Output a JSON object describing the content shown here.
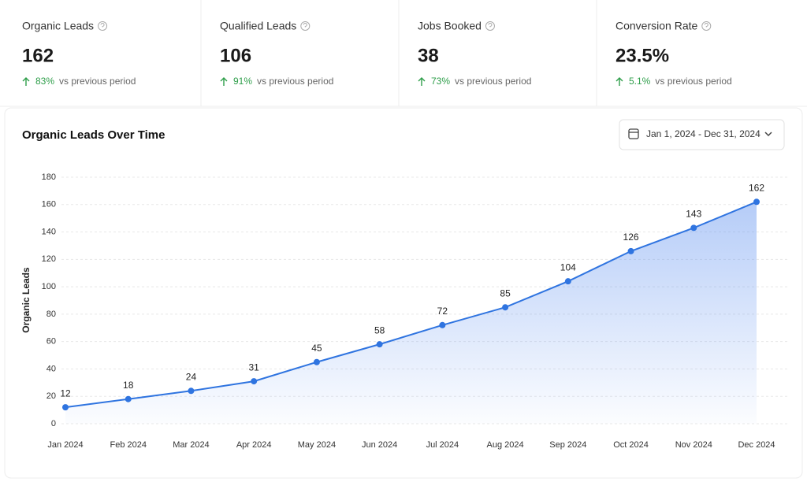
{
  "kpis": [
    {
      "title": "Organic Leads",
      "value": "162",
      "change": "83%",
      "note": "vs previous period"
    },
    {
      "title": "Qualified Leads",
      "value": "106",
      "change": "91%",
      "note": "vs previous period"
    },
    {
      "title": "Jobs Booked",
      "value": "38",
      "change": "73%",
      "note": "vs previous period"
    },
    {
      "title": "Conversion Rate",
      "value": "23.5%",
      "change": "5.1%",
      "note": "vs previous period"
    }
  ],
  "chart_data": {
    "type": "line",
    "title": "Organic Leads Over Time",
    "date_range": "Jan 1, 2024 - Dec 31, 2024",
    "y_label": "Organic Leads",
    "categories": [
      "Jan 2024",
      "Feb 2024",
      "Mar 2024",
      "Apr 2024",
      "May 2024",
      "Jun 2024",
      "Jul 2024",
      "Aug 2024",
      "Sep 2024",
      "Oct 2024",
      "Nov 2024",
      "Dec 2024"
    ],
    "values": [
      12,
      18,
      24,
      31,
      45,
      58,
      72,
      85,
      104,
      126,
      143,
      162
    ],
    "color": "#2f74e0",
    "ylim": [
      0,
      180
    ],
    "yticks": [
      0,
      20,
      40,
      60,
      80,
      100,
      120,
      140,
      160,
      180
    ],
    "grid": true
  }
}
